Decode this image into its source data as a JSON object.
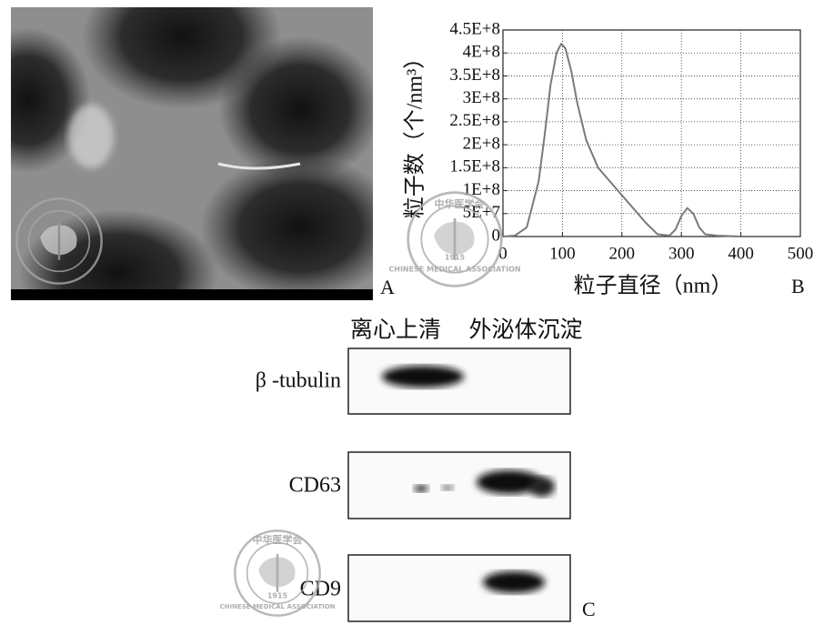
{
  "panel_labels": [
    "A",
    "B",
    "C"
  ],
  "chart_data": {
    "type": "line",
    "y_label": "粒子数（个/nm³）",
    "x_label": "粒子直径（nm）",
    "x": [
      0,
      20,
      40,
      60,
      70,
      80,
      90,
      98,
      105,
      115,
      125,
      140,
      160,
      180,
      200,
      220,
      240,
      260,
      280,
      290,
      300,
      310,
      320,
      330,
      340,
      360,
      400
    ],
    "series": [
      {
        "color": "#7a7a7a",
        "values": [
          0,
          2000000,
          20000000,
          120000000,
          220000000,
          330000000,
          400000000,
          420000000,
          410000000,
          360000000,
          290000000,
          210000000,
          150000000,
          120000000,
          90000000,
          60000000,
          30000000,
          5000000,
          2000000,
          15000000,
          45000000,
          62000000,
          50000000,
          20000000,
          5000000,
          2000000,
          0
        ]
      }
    ],
    "xlim": [
      0,
      500
    ],
    "xticks": [
      0,
      100,
      200,
      300,
      400,
      500
    ],
    "ylim": [
      0,
      450000000
    ],
    "yticks": [
      0,
      {
        "value": 50000000,
        "label": "5E+7"
      },
      {
        "value": 100000000,
        "label": "1E+8"
      },
      {
        "value": 150000000,
        "label": "1.5E+8"
      },
      {
        "value": 200000000,
        "label": "2E+8"
      },
      {
        "value": 250000000,
        "label": "2.5E+8"
      },
      {
        "value": 300000000,
        "label": "3E+8"
      },
      {
        "value": 350000000,
        "label": "3.5E+8"
      },
      {
        "value": 400000000,
        "label": "4E+8"
      },
      {
        "value": 450000000,
        "label": "4.5E+8"
      }
    ],
    "grid": true
  },
  "blot": {
    "lanes_header": [
      "离心上清",
      "外泌体沉淀"
    ],
    "rows": [
      "β -tubulin",
      "CD63",
      "CD9"
    ]
  },
  "watermark": {
    "top": "中华医学会",
    "ring": "CHINESE MEDICAL ASSOCIATION",
    "year": "1915"
  }
}
